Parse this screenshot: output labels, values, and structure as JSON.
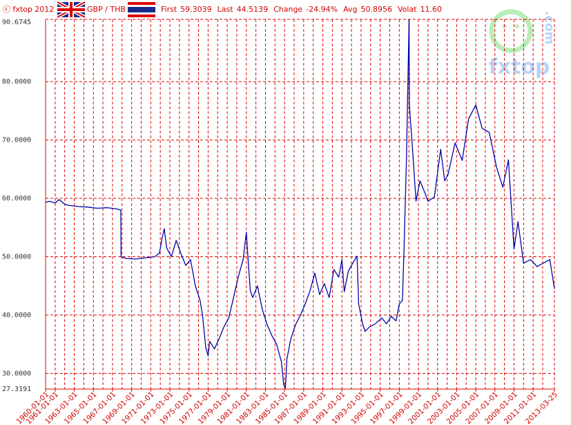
{
  "header": {
    "copyright": "ⓒ fxtop 2012",
    "pair": "GBP / THB",
    "stats": [
      {
        "label": "First",
        "value": "59.3039"
      },
      {
        "label": "Last",
        "value": "44.5139"
      },
      {
        "label": "Change",
        "value": "-24.94%"
      },
      {
        "label": "Avg",
        "value": "50.8956"
      },
      {
        "label": "Volat",
        "value": "11.60"
      }
    ]
  },
  "logo": {
    "name": "fxtop",
    "suffix": ".com"
  },
  "chart_data": {
    "type": "line",
    "xlim": [
      "1960-01-01",
      "2013-03-25"
    ],
    "xticks": [
      "1960-01-01",
      "1961-01-01",
      "1963-01-01",
      "1965-01-01",
      "1967-01-01",
      "1969-01-01",
      "1971-01-01",
      "1973-01-01",
      "1975-01-01",
      "1977-01-01",
      "1979-01-01",
      "1981-01-01",
      "1983-01-01",
      "1985-01-01",
      "1987-01-01",
      "1989-01-01",
      "1991-01-01",
      "1993-01-01",
      "1995-01-01",
      "1997-01-01",
      "1999-01-01",
      "2001-01-01",
      "2003-01-01",
      "2005-01-01",
      "2007-01-01",
      "2009-01-01",
      "2011-01-01",
      "2013-03-25"
    ],
    "xminor_ticks": [
      "1962-01-01",
      "1964-01-01",
      "1966-01-01",
      "1968-01-01",
      "1970-01-01",
      "1972-01-01",
      "1974-01-01",
      "1976-01-01",
      "1978-01-01",
      "1980-01-01",
      "1982-01-01",
      "1984-01-01",
      "1986-01-01",
      "1988-01-01",
      "1990-01-01",
      "1992-01-01",
      "1994-01-01",
      "1996-01-01",
      "1998-01-01",
      "2000-01-01",
      "2002-01-01",
      "2004-01-01",
      "2006-01-01",
      "2008-01-01",
      "2010-01-01",
      "2012-01-01"
    ],
    "ylim": [
      27.3191,
      90.6745
    ],
    "yticks": [
      27.3191,
      {
        "value": 30,
        "label": "30.0000"
      },
      {
        "value": 40,
        "label": "40.0000"
      },
      {
        "value": 50,
        "label": "50.0000"
      },
      {
        "value": 60,
        "label": "60.0000"
      },
      {
        "value": 70,
        "label": "70.0000"
      },
      {
        "value": 80,
        "label": "80.0000"
      },
      90.6745
    ],
    "grid": true,
    "grid_color": "#e00000",
    "x": [
      "1960-01-01",
      "1960-06-01",
      "1961-01-01",
      "1961-06-01",
      "1962-01-01",
      "1962-06-01",
      "1963-06-01",
      "1964-06-01",
      "1965-06-01",
      "1966-06-01",
      "1967-06-01",
      "1967-11-15",
      "1967-11-25",
      "1968-06-01",
      "1969-06-01",
      "1970-06-01",
      "1971-06-01",
      "1971-12-01",
      "1972-03-01",
      "1972-06-01",
      "1972-09-01",
      "1973-03-01",
      "1973-09-01",
      "1974-03-01",
      "1974-09-01",
      "1975-03-01",
      "1975-09-01",
      "1976-03-01",
      "1976-06-01",
      "1976-10-01",
      "1977-01-01",
      "1977-03-01",
      "1977-09-01",
      "1978-03-01",
      "1978-09-01",
      "1979-03-01",
      "1979-09-01",
      "1980-03-01",
      "1980-09-01",
      "1981-01-01",
      "1981-03-01",
      "1981-06-01",
      "1981-09-01",
      "1982-03-01",
      "1982-09-01",
      "1983-03-01",
      "1983-09-01",
      "1984-03-01",
      "1984-09-01",
      "1984-12-01",
      "1985-02-01",
      "1985-04-01",
      "1985-09-01",
      "1986-03-01",
      "1986-09-01",
      "1987-03-01",
      "1987-09-01",
      "1988-03-01",
      "1988-09-01",
      "1989-03-01",
      "1989-09-01",
      "1990-03-01",
      "1990-09-01",
      "1991-01-01",
      "1991-04-01",
      "1991-09-01",
      "1992-03-01",
      "1992-08-01",
      "1992-10-01",
      "1993-03-01",
      "1993-06-01",
      "1993-12-01",
      "1994-06-01",
      "1995-03-01",
      "1995-09-01",
      "1996-03-01",
      "1996-09-01",
      "1997-01-01",
      "1997-05-01",
      "1997-07-01",
      "1997-10-01",
      "1998-01-10",
      "1998-01-20",
      "1998-06-01",
      "1998-10-01",
      "1999-03-01",
      "1999-09-01",
      "2000-01-01",
      "2000-09-01",
      "2001-05-01",
      "2001-10-01",
      "2002-02-01",
      "2002-11-01",
      "2003-08-01",
      "2004-04-01",
      "2005-01-01",
      "2005-09-01",
      "2006-06-01",
      "2007-03-01",
      "2007-11-01",
      "2008-06-01",
      "2009-01-01",
      "2009-06-01",
      "2010-01-01",
      "2010-10-01",
      "2011-06-01",
      "2012-03-01",
      "2012-10-01",
      "2013-03-25"
    ],
    "series": [
      {
        "name": "GBP / THB",
        "color": "#0000aa",
        "values": [
          59.3039,
          59.5,
          59.2,
          59.8,
          59.0,
          58.8,
          58.6,
          58.5,
          58.3,
          58.4,
          58.2,
          58.0,
          50.0,
          49.7,
          49.6,
          49.8,
          50.0,
          50.6,
          53.0,
          54.8,
          51.5,
          50.0,
          52.8,
          50.5,
          48.5,
          49.5,
          45.0,
          42.5,
          40.0,
          34.5,
          33.0,
          35.5,
          34.2,
          36.0,
          38.0,
          39.5,
          43.0,
          46.6,
          49.5,
          54.2,
          50.0,
          44.2,
          43.0,
          45.0,
          41.0,
          38.4,
          36.5,
          35.0,
          32.0,
          28.0,
          27.5,
          32.5,
          36.0,
          38.4,
          40.0,
          41.9,
          44.2,
          47.2,
          43.5,
          45.4,
          43.0,
          47.8,
          46.5,
          49.5,
          44.0,
          47.5,
          49.0,
          50.1,
          41.9,
          38.5,
          37.2,
          38.0,
          38.4,
          39.5,
          38.5,
          39.8,
          39.0,
          41.9,
          42.5,
          51.3,
          66.6,
          90.6745,
          76.0,
          67.8,
          59.5,
          63.0,
          61.0,
          59.5,
          60.2,
          68.4,
          63.0,
          64.0,
          69.5,
          66.5,
          73.6,
          76.0,
          72.0,
          71.3,
          65.4,
          61.9,
          66.6,
          51.3,
          56.0,
          48.9,
          49.5,
          48.3,
          49.0,
          49.5,
          44.5139
        ]
      }
    ]
  }
}
